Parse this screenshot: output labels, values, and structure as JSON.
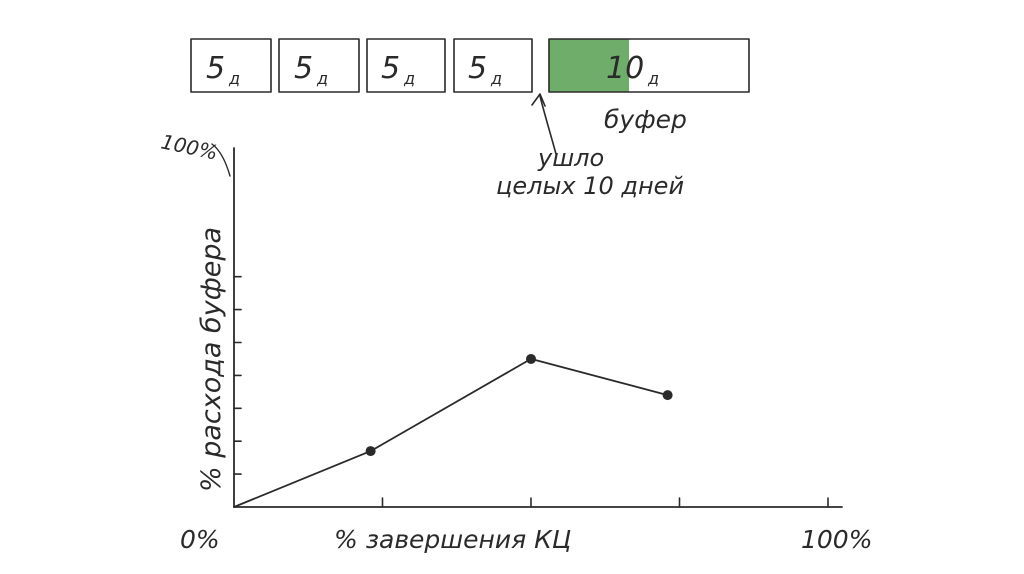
{
  "colors": {
    "ink": "#2a2a2a",
    "fill_green": "#6fad6a",
    "paper": "#ffffff"
  },
  "tasks": [
    {
      "num": "5",
      "unit": "д"
    },
    {
      "num": "5",
      "unit": "д"
    },
    {
      "num": "5",
      "unit": "д"
    },
    {
      "num": "5",
      "unit": "д"
    }
  ],
  "buffer": {
    "num": "10",
    "unit": "д",
    "label": "буфер",
    "consumed_fraction": 0.4
  },
  "note": {
    "line1": "ушло",
    "line2": "целых 10 дней"
  },
  "chart_data": {
    "type": "line",
    "ylabel": "% расхода буфера",
    "xlabel": "% завершения КЦ",
    "origin_label": "0%",
    "x_end_label": "100%",
    "y_end_label": "100%",
    "x_ticks": [
      0,
      0.25,
      0.5,
      0.75,
      1.0
    ],
    "y_ticks": [
      0,
      0.1,
      0.2,
      0.3,
      0.4,
      0.5,
      0.6,
      0.7
    ],
    "series": [
      {
        "points": [
          {
            "x": 0,
            "y": 0
          },
          {
            "x": 0.23,
            "y": 0.17
          },
          {
            "x": 0.5,
            "y": 0.45
          },
          {
            "x": 0.73,
            "y": 0.34
          }
        ]
      }
    ]
  }
}
